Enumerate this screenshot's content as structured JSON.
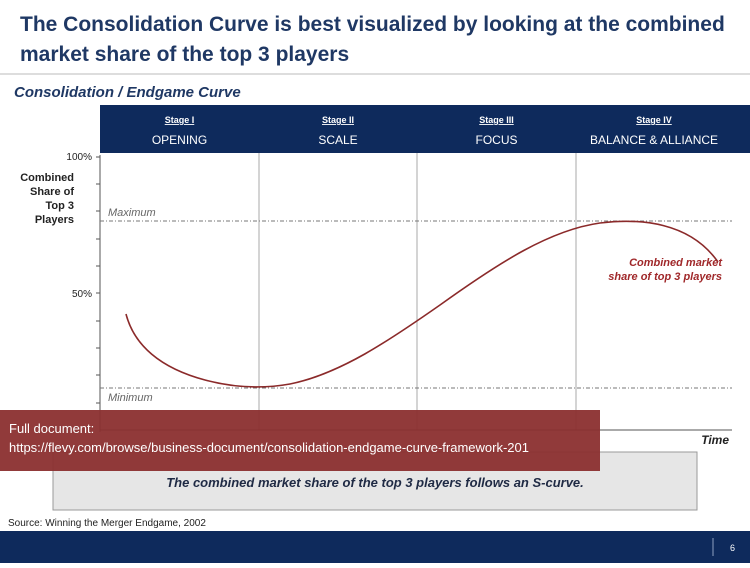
{
  "title": [
    "The Consolidation Curve is best visualized by looking at the combined",
    "market share of the top 3 players"
  ],
  "subtitle": "Consolidation / Endgame Curve",
  "stages": [
    {
      "stage": "Stage I",
      "name": "OPENING"
    },
    {
      "stage": "Stage II",
      "name": "SCALE"
    },
    {
      "stage": "Stage III",
      "name": "FOCUS"
    },
    {
      "stage": "Stage IV",
      "name": "BALANCE & ALLIANCE"
    }
  ],
  "y_axis": {
    "label": [
      "Combined",
      "Share of",
      "Top 3",
      "Players"
    ],
    "ticks": [
      "100%",
      "50%"
    ]
  },
  "reference_lines": {
    "maximum": "Maximum",
    "minimum": "Minimum"
  },
  "curve_label": [
    "Combined market",
    "share of top 3 players"
  ],
  "x_axis_label": "Time",
  "banner": [
    "Full document:",
    "https://flevy.com/browse/business-document/consolidation-endgame-curve-framework-201"
  ],
  "conclusion": "The combined market share of the top 3 players follows an S-curve.",
  "source": "Source: Winning the Merger Endgame, 2002",
  "page_number": "6"
}
